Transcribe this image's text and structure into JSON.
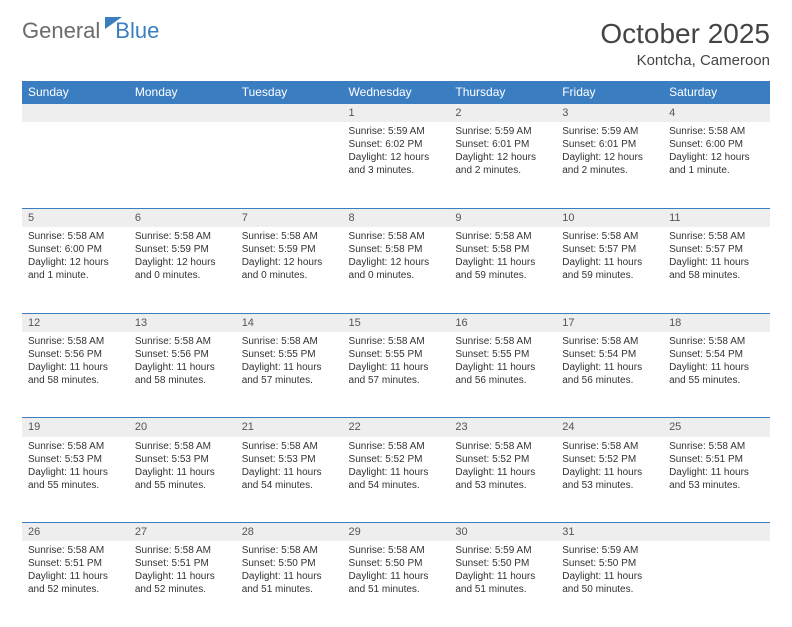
{
  "brand": {
    "word1": "General",
    "word2": "Blue"
  },
  "title": "October 2025",
  "location": "Kontcha, Cameroon",
  "colors": {
    "header_bg": "#3a7ec1",
    "header_text": "#ffffff",
    "daynum_bg": "#eeeeee",
    "rule": "#3a7ec1",
    "text": "#333333",
    "logo_gray": "#6b6b6b",
    "logo_blue": "#3a7ec1"
  },
  "typography": {
    "title_fontsize": 28,
    "location_fontsize": 15,
    "weekday_fontsize": 12,
    "daynum_fontsize": 11,
    "detail_fontsize": 10
  },
  "weekdays": [
    "Sunday",
    "Monday",
    "Tuesday",
    "Wednesday",
    "Thursday",
    "Friday",
    "Saturday"
  ],
  "weeks": [
    [
      null,
      null,
      null,
      {
        "n": "1",
        "sr": "5:59 AM",
        "ss": "6:02 PM",
        "dl": "12 hours and 3 minutes."
      },
      {
        "n": "2",
        "sr": "5:59 AM",
        "ss": "6:01 PM",
        "dl": "12 hours and 2 minutes."
      },
      {
        "n": "3",
        "sr": "5:59 AM",
        "ss": "6:01 PM",
        "dl": "12 hours and 2 minutes."
      },
      {
        "n": "4",
        "sr": "5:58 AM",
        "ss": "6:00 PM",
        "dl": "12 hours and 1 minute."
      }
    ],
    [
      {
        "n": "5",
        "sr": "5:58 AM",
        "ss": "6:00 PM",
        "dl": "12 hours and 1 minute."
      },
      {
        "n": "6",
        "sr": "5:58 AM",
        "ss": "5:59 PM",
        "dl": "12 hours and 0 minutes."
      },
      {
        "n": "7",
        "sr": "5:58 AM",
        "ss": "5:59 PM",
        "dl": "12 hours and 0 minutes."
      },
      {
        "n": "8",
        "sr": "5:58 AM",
        "ss": "5:58 PM",
        "dl": "12 hours and 0 minutes."
      },
      {
        "n": "9",
        "sr": "5:58 AM",
        "ss": "5:58 PM",
        "dl": "11 hours and 59 minutes."
      },
      {
        "n": "10",
        "sr": "5:58 AM",
        "ss": "5:57 PM",
        "dl": "11 hours and 59 minutes."
      },
      {
        "n": "11",
        "sr": "5:58 AM",
        "ss": "5:57 PM",
        "dl": "11 hours and 58 minutes."
      }
    ],
    [
      {
        "n": "12",
        "sr": "5:58 AM",
        "ss": "5:56 PM",
        "dl": "11 hours and 58 minutes."
      },
      {
        "n": "13",
        "sr": "5:58 AM",
        "ss": "5:56 PM",
        "dl": "11 hours and 58 minutes."
      },
      {
        "n": "14",
        "sr": "5:58 AM",
        "ss": "5:55 PM",
        "dl": "11 hours and 57 minutes."
      },
      {
        "n": "15",
        "sr": "5:58 AM",
        "ss": "5:55 PM",
        "dl": "11 hours and 57 minutes."
      },
      {
        "n": "16",
        "sr": "5:58 AM",
        "ss": "5:55 PM",
        "dl": "11 hours and 56 minutes."
      },
      {
        "n": "17",
        "sr": "5:58 AM",
        "ss": "5:54 PM",
        "dl": "11 hours and 56 minutes."
      },
      {
        "n": "18",
        "sr": "5:58 AM",
        "ss": "5:54 PM",
        "dl": "11 hours and 55 minutes."
      }
    ],
    [
      {
        "n": "19",
        "sr": "5:58 AM",
        "ss": "5:53 PM",
        "dl": "11 hours and 55 minutes."
      },
      {
        "n": "20",
        "sr": "5:58 AM",
        "ss": "5:53 PM",
        "dl": "11 hours and 55 minutes."
      },
      {
        "n": "21",
        "sr": "5:58 AM",
        "ss": "5:53 PM",
        "dl": "11 hours and 54 minutes."
      },
      {
        "n": "22",
        "sr": "5:58 AM",
        "ss": "5:52 PM",
        "dl": "11 hours and 54 minutes."
      },
      {
        "n": "23",
        "sr": "5:58 AM",
        "ss": "5:52 PM",
        "dl": "11 hours and 53 minutes."
      },
      {
        "n": "24",
        "sr": "5:58 AM",
        "ss": "5:52 PM",
        "dl": "11 hours and 53 minutes."
      },
      {
        "n": "25",
        "sr": "5:58 AM",
        "ss": "5:51 PM",
        "dl": "11 hours and 53 minutes."
      }
    ],
    [
      {
        "n": "26",
        "sr": "5:58 AM",
        "ss": "5:51 PM",
        "dl": "11 hours and 52 minutes."
      },
      {
        "n": "27",
        "sr": "5:58 AM",
        "ss": "5:51 PM",
        "dl": "11 hours and 52 minutes."
      },
      {
        "n": "28",
        "sr": "5:58 AM",
        "ss": "5:50 PM",
        "dl": "11 hours and 51 minutes."
      },
      {
        "n": "29",
        "sr": "5:58 AM",
        "ss": "5:50 PM",
        "dl": "11 hours and 51 minutes."
      },
      {
        "n": "30",
        "sr": "5:59 AM",
        "ss": "5:50 PM",
        "dl": "11 hours and 51 minutes."
      },
      {
        "n": "31",
        "sr": "5:59 AM",
        "ss": "5:50 PM",
        "dl": "11 hours and 50 minutes."
      },
      null
    ]
  ],
  "labels": {
    "sunrise": "Sunrise:",
    "sunset": "Sunset:",
    "daylight": "Daylight:"
  }
}
